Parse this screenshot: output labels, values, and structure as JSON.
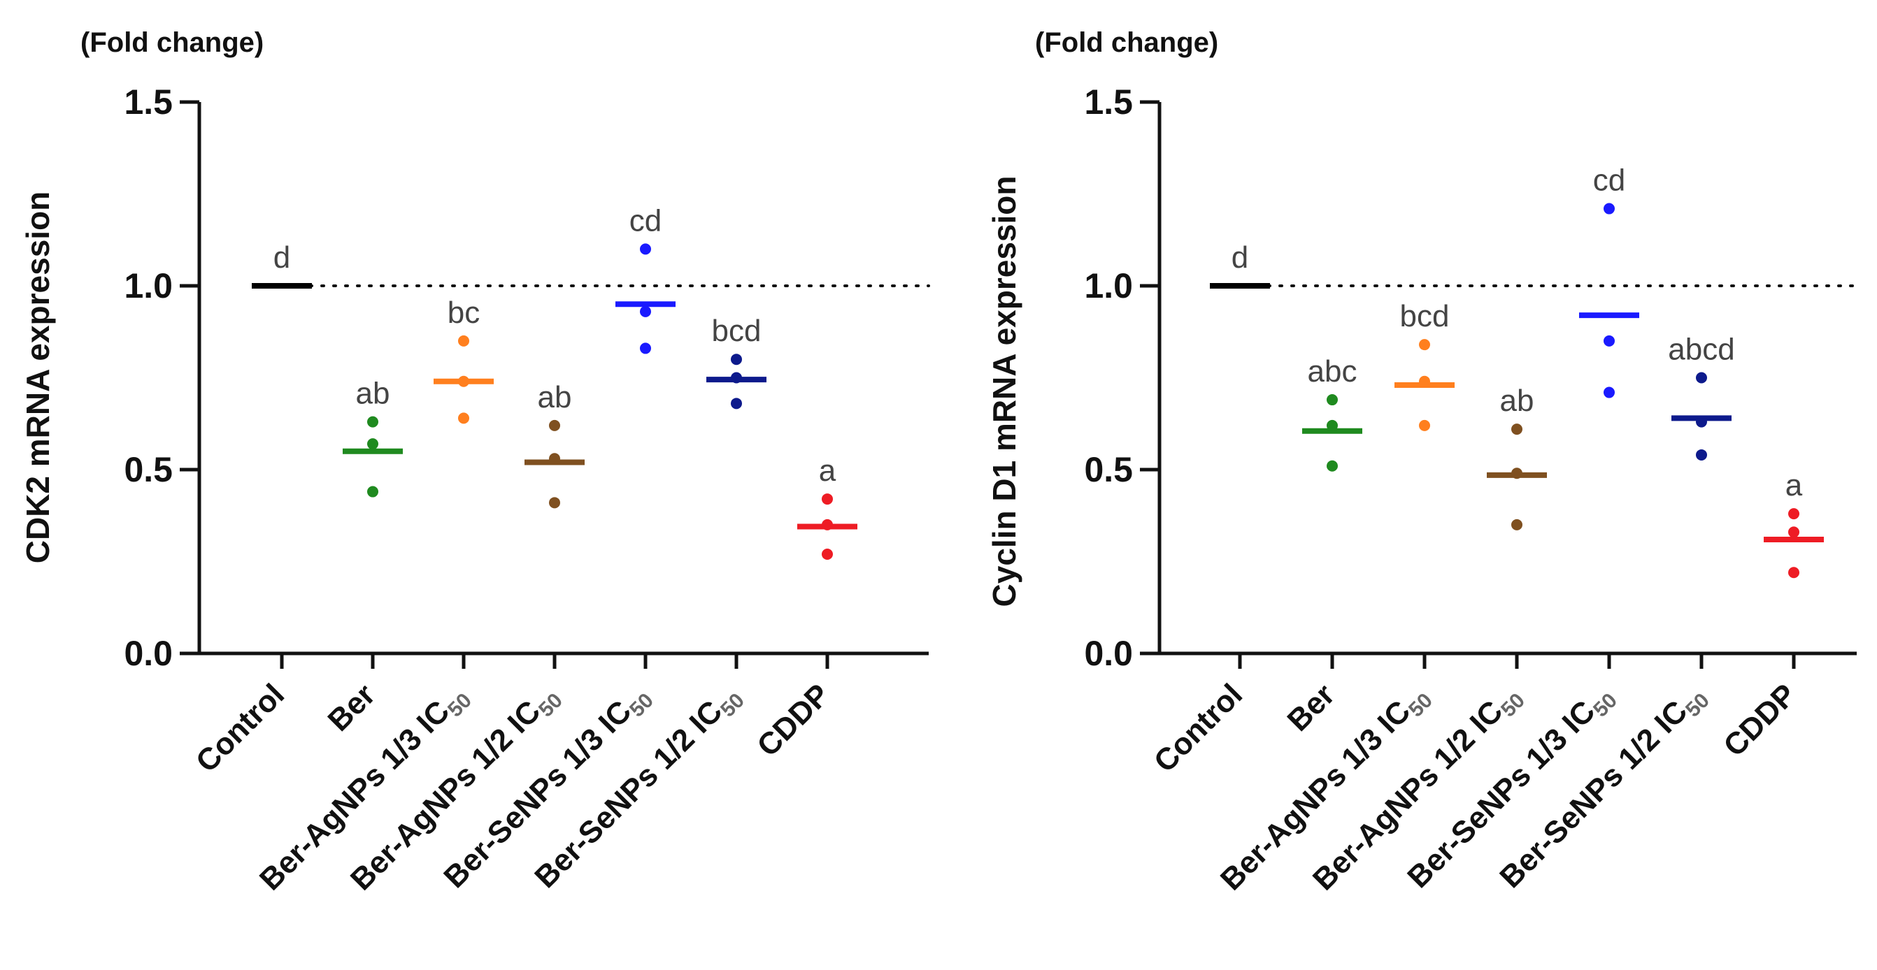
{
  "chart_data": [
    {
      "type": "scatter",
      "unit_label": "(Fold change)",
      "ylabel": "CDK2 mRNA expression",
      "ylim": [
        0,
        1.5
      ],
      "yticks": [
        "0.0",
        "0.5",
        "1.0",
        "1.5"
      ],
      "reference_line": 1.0,
      "categories": [
        {
          "label": "Control",
          "subscript": ""
        },
        {
          "label": "Ber",
          "subscript": ""
        },
        {
          "label": "Ber-AgNPs 1/3 IC",
          "subscript": "50"
        },
        {
          "label": "Ber-AgNPs 1/2 IC",
          "subscript": "50"
        },
        {
          "label": "Ber-SeNPs 1/3 IC",
          "subscript": "50"
        },
        {
          "label": "Ber-SeNPs 1/2 IC",
          "subscript": "50"
        },
        {
          "label": "CDDP",
          "subscript": ""
        }
      ],
      "groups": [
        {
          "color": "#000000",
          "mean": 1.0,
          "points": [],
          "letter": "d"
        },
        {
          "color": "#1f8a1f",
          "mean": 0.55,
          "points": [
            0.63,
            0.57,
            0.44
          ],
          "letter": "ab"
        },
        {
          "color": "#ff7f1e",
          "mean": 0.74,
          "points": [
            0.85,
            0.74,
            0.64
          ],
          "letter": "bc"
        },
        {
          "color": "#7f5020",
          "mean": 0.52,
          "points": [
            0.62,
            0.53,
            0.41
          ],
          "letter": "ab"
        },
        {
          "color": "#1a1aff",
          "mean": 0.95,
          "points": [
            1.1,
            0.93,
            0.83
          ],
          "letter": "cd"
        },
        {
          "color": "#0d1a8c",
          "mean": 0.745,
          "points": [
            0.8,
            0.75,
            0.68
          ],
          "letter": "bcd"
        },
        {
          "color": "#ee1c24",
          "mean": 0.345,
          "points": [
            0.42,
            0.35,
            0.27
          ],
          "letter": "a"
        }
      ]
    },
    {
      "type": "scatter",
      "unit_label": "(Fold change)",
      "ylabel": "Cyclin D1 mRNA expression",
      "ylim": [
        0,
        1.5
      ],
      "yticks": [
        "0.0",
        "0.5",
        "1.0",
        "1.5"
      ],
      "reference_line": 1.0,
      "categories": [
        {
          "label": "Control",
          "subscript": ""
        },
        {
          "label": "Ber",
          "subscript": ""
        },
        {
          "label": "Ber-AgNPs 1/3 IC",
          "subscript": "50"
        },
        {
          "label": "Ber-AgNPs 1/2 IC",
          "subscript": "50"
        },
        {
          "label": "Ber-SeNPs 1/3 IC",
          "subscript": "50"
        },
        {
          "label": "Ber-SeNPs 1/2 IC",
          "subscript": "50"
        },
        {
          "label": "CDDP",
          "subscript": ""
        }
      ],
      "groups": [
        {
          "color": "#000000",
          "mean": 1.0,
          "points": [],
          "letter": "d"
        },
        {
          "color": "#1f8a1f",
          "mean": 0.605,
          "points": [
            0.69,
            0.62,
            0.51
          ],
          "letter": "abc"
        },
        {
          "color": "#ff7f1e",
          "mean": 0.73,
          "points": [
            0.84,
            0.74,
            0.62
          ],
          "letter": "bcd"
        },
        {
          "color": "#7f5020",
          "mean": 0.485,
          "points": [
            0.61,
            0.49,
            0.35
          ],
          "letter": "ab"
        },
        {
          "color": "#1a1aff",
          "mean": 0.92,
          "points": [
            1.21,
            0.85,
            0.71
          ],
          "letter": "cd"
        },
        {
          "color": "#0d1a8c",
          "mean": 0.64,
          "points": [
            0.75,
            0.63,
            0.54
          ],
          "letter": "abcd"
        },
        {
          "color": "#ee1c24",
          "mean": 0.31,
          "points": [
            0.38,
            0.33,
            0.22
          ],
          "letter": "a"
        }
      ]
    }
  ]
}
